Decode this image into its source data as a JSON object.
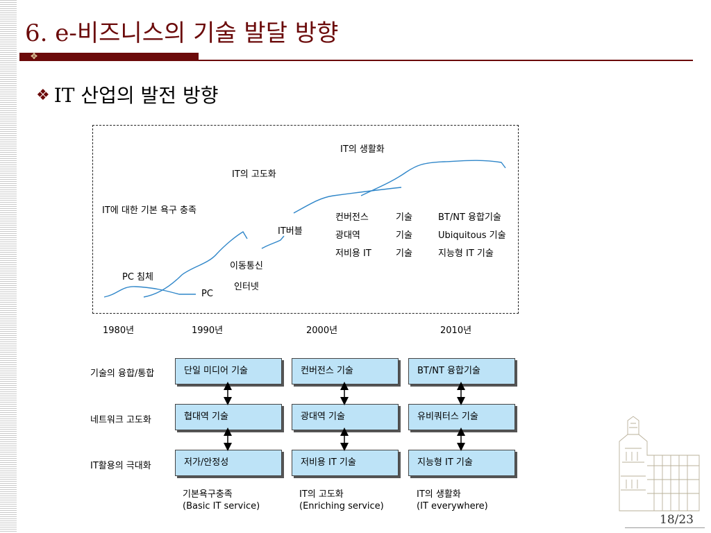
{
  "slide": {
    "title": "6. e-비즈니스의 기술 발달 방향",
    "bullet": "IT 산업의 발전 방향",
    "page": "18/23"
  },
  "timeline": {
    "phases": {
      "basic": "IT에 대한 기본 욕구 충족",
      "advanced": "IT의 고도화",
      "everyday": "IT의 생활화"
    },
    "events": {
      "pc_stagnation": "PC 침체",
      "pc": "PC",
      "mobile": "이동통신",
      "internet": "인터넷",
      "it_bubble": "IT버블"
    },
    "tech_table": [
      {
        "left": "컨버전스",
        "mid": "기술",
        "right": "BT/NT 융합기술"
      },
      {
        "left": "광대역",
        "mid": "기술",
        "right": "Ubiquitous 기술"
      },
      {
        "left": "저비용 IT",
        "mid": "기술",
        "right": "지능형 IT 기술"
      }
    ],
    "years": [
      "1980년",
      "1990년",
      "2000년",
      "2010년"
    ]
  },
  "diagram": {
    "rows": [
      "기술의 융합/통합",
      "네트워크 고도화",
      "IT활용의 극대화"
    ],
    "columns": [
      {
        "cells": [
          "단일 미디어 기술",
          "협대역 기술",
          "저가/안정성"
        ],
        "caption1": "기본욕구충족",
        "caption2": "(Basic IT service)"
      },
      {
        "cells": [
          "컨버전스 기술",
          "광대역 기술",
          "저비용 IT 기술"
        ],
        "caption1": "IT의 고도화",
        "caption2": "(Enriching service)"
      },
      {
        "cells": [
          "BT/NT 융합기술",
          "유비쿼터스 기술",
          "지능형 IT 기술"
        ],
        "caption1": "IT의 생활화",
        "caption2": "(IT everywhere)"
      }
    ]
  },
  "colors": {
    "accent": "#6b0a0a",
    "box_fill": "#bde3f7",
    "curve": "#2f86c9"
  },
  "icons": {
    "bullet": "diamond-cluster-icon",
    "building": "campus-building-illustration"
  }
}
